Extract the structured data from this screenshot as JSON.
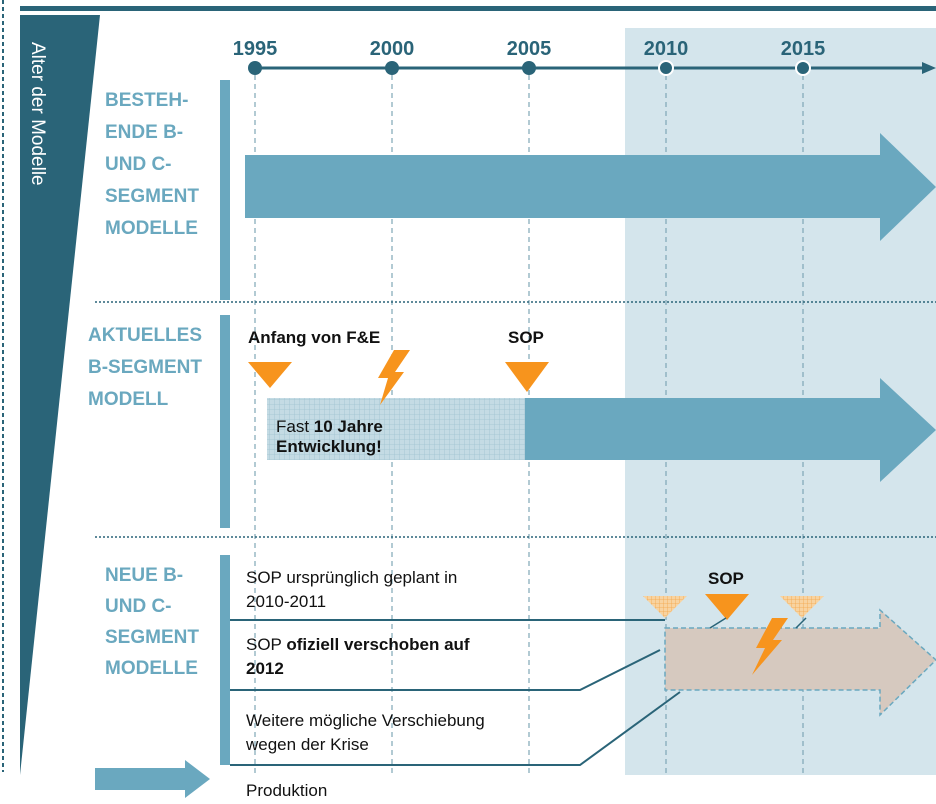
{
  "side_label": "Alter der Modelle",
  "years": [
    "1995",
    "2000",
    "2005",
    "2010",
    "2015"
  ],
  "sections": [
    {
      "label_lines": [
        "BESTEH-",
        "ENDE B-",
        "UND C-",
        "SEGMENT",
        "MODELLE"
      ]
    },
    {
      "label_lines": [
        "AKTUELLES",
        "B-SEGMENT",
        "MODELL"
      ],
      "start_label": "Anfang von F&E",
      "sop_label": "SOP",
      "note": {
        "prefix": "Fast ",
        "bold": "10 Jahre",
        "line2": "Entwicklung!"
      }
    },
    {
      "label_lines": [
        "NEUE B-",
        "UND C-",
        "SEGMENT",
        "MODELLE"
      ],
      "sop_label": "SOP",
      "notes": [
        {
          "lines": [
            "SOP ursprünglich geplant in",
            "2010-2011"
          ]
        },
        {
          "prefix": "SOP ",
          "bold_lines": [
            "ofiziell verschoben auf",
            "2012"
          ]
        },
        {
          "lines": [
            "Weitere mögliche Verschiebung",
            "wegen der Krise"
          ]
        }
      ]
    }
  ],
  "legend": {
    "label": "Produktion"
  }
}
